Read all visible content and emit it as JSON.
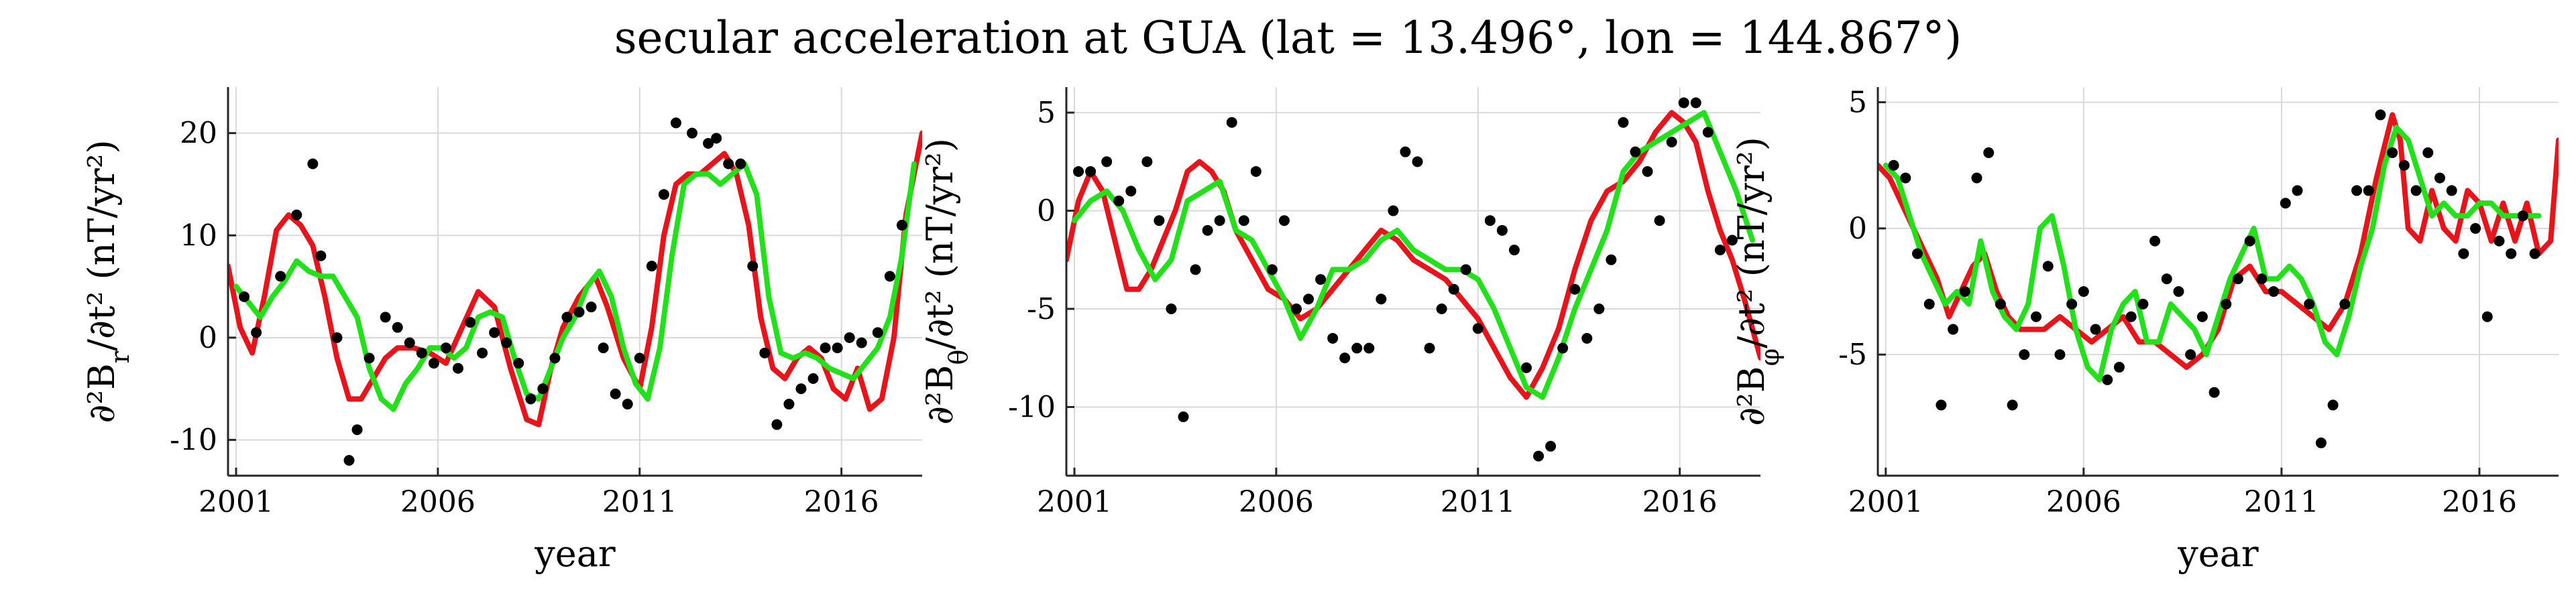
{
  "title": "secular acceleration at GUA (lat = 13.496°, lon = 144.867°)",
  "colors": {
    "model_a": "#e8141b",
    "model_b": "#22e01a",
    "observed": "#000000",
    "grid": "#d9d9d9"
  },
  "chart_data": [
    {
      "type": "line",
      "ylabel": "∂²B_r/∂t² (nT/yr²)",
      "xlabel": "year",
      "xlim": [
        2000.8,
        2018.0
      ],
      "ylim": [
        -13.5,
        24.5
      ],
      "xticks": [
        2001,
        2006,
        2011,
        2016
      ],
      "yticks": [
        -10,
        0,
        10,
        20
      ],
      "grid": true,
      "series": [
        {
          "kind": "line",
          "color": "#e8141b",
          "x": [
            2000.8,
            2001.1,
            2001.4,
            2001.7,
            2002.0,
            2002.3,
            2002.6,
            2002.9,
            2003.2,
            2003.5,
            2003.8,
            2004.1,
            2004.4,
            2004.7,
            2005.0,
            2005.4,
            2005.8,
            2006.2,
            2006.6,
            2007.0,
            2007.4,
            2007.8,
            2008.2,
            2008.5,
            2008.8,
            2009.1,
            2009.5,
            2009.9,
            2010.2,
            2010.6,
            2011.0,
            2011.3,
            2011.6,
            2011.9,
            2012.2,
            2012.5,
            2012.8,
            2013.1,
            2013.4,
            2013.7,
            2014.0,
            2014.3,
            2014.6,
            2014.9,
            2015.2,
            2015.5,
            2015.8,
            2016.1,
            2016.4,
            2016.7,
            2017.0,
            2017.3,
            2017.6,
            2018.0
          ],
          "y": [
            7,
            1,
            -1.5,
            4,
            10.5,
            12,
            11,
            9,
            4,
            -2,
            -6,
            -6,
            -4,
            -2,
            -1,
            -1,
            -1.5,
            -2.5,
            1,
            4.5,
            3,
            -3,
            -8,
            -8.5,
            -3,
            1,
            4,
            6,
            3,
            -2,
            -5,
            1,
            10,
            15,
            16,
            16,
            17,
            18,
            16,
            11,
            2,
            -3,
            -4,
            -2,
            -1,
            -2,
            -5,
            -6,
            -3,
            -7,
            -6,
            0,
            12,
            20
          ]
        },
        {
          "kind": "line",
          "color": "#22e01a",
          "x": [
            2001.0,
            2001.3,
            2001.6,
            2001.9,
            2002.2,
            2002.5,
            2002.8,
            2003.1,
            2003.4,
            2003.7,
            2004.0,
            2004.3,
            2004.6,
            2004.9,
            2005.2,
            2005.5,
            2005.8,
            2006.1,
            2006.4,
            2006.7,
            2007.0,
            2007.3,
            2007.6,
            2007.9,
            2008.2,
            2008.5,
            2008.8,
            2009.1,
            2009.4,
            2009.7,
            2010.0,
            2010.3,
            2010.6,
            2010.9,
            2011.2,
            2011.5,
            2011.8,
            2012.1,
            2012.4,
            2012.7,
            2013.0,
            2013.3,
            2013.6,
            2013.9,
            2014.2,
            2014.5,
            2014.8,
            2015.1,
            2015.4,
            2015.7,
            2016.0,
            2016.3,
            2016.6,
            2016.9,
            2017.2,
            2017.5,
            2017.8
          ],
          "y": [
            5,
            3.5,
            2,
            4,
            5.5,
            7.5,
            6.5,
            6,
            6,
            4,
            2,
            -3,
            -6,
            -7,
            -4.5,
            -3,
            -1,
            -1,
            -2,
            -1,
            2,
            2.5,
            2,
            -2,
            -5.5,
            -6,
            -3,
            0,
            2,
            5,
            6.5,
            4,
            -1,
            -4.5,
            -6,
            -1,
            8,
            15,
            16,
            16,
            15,
            16,
            17,
            14,
            4,
            -1.5,
            -2,
            -1.5,
            -2,
            -3,
            -3.5,
            -4,
            -2.5,
            -1,
            2,
            8,
            17
          ]
        },
        {
          "kind": "scatter",
          "color": "#000000",
          "x": [
            2001.2,
            2001.5,
            2002.1,
            2002.5,
            2002.9,
            2003.1,
            2003.5,
            2003.8,
            2004.0,
            2004.3,
            2004.7,
            2005.0,
            2005.3,
            2005.6,
            2005.9,
            2006.2,
            2006.5,
            2006.8,
            2007.1,
            2007.4,
            2007.7,
            2008.0,
            2008.3,
            2008.6,
            2008.9,
            2009.2,
            2009.5,
            2009.8,
            2010.1,
            2010.4,
            2010.7,
            2011.0,
            2011.3,
            2011.6,
            2011.9,
            2012.3,
            2012.7,
            2012.9,
            2013.2,
            2013.5,
            2013.8,
            2014.1,
            2014.4,
            2014.7,
            2015.0,
            2015.3,
            2015.6,
            2015.9,
            2016.2,
            2016.5,
            2016.9,
            2017.2,
            2017.5
          ],
          "y": [
            4,
            0.5,
            6,
            12,
            17,
            8,
            0,
            -12,
            -9,
            -2,
            2,
            1,
            -0.5,
            -1.5,
            -2.5,
            -1,
            -3,
            1.5,
            -1.5,
            0.5,
            -0.5,
            -2.5,
            -6,
            -5,
            -2,
            2,
            2.5,
            3,
            -1,
            -5.5,
            -6.5,
            -2,
            7,
            14,
            21,
            20,
            19,
            19.5,
            17,
            17,
            7,
            -1.5,
            -8.5,
            -6.5,
            -5,
            -4,
            -1,
            -1,
            0,
            -0.5,
            0.5,
            6,
            11
          ]
        }
      ]
    },
    {
      "type": "line",
      "ylabel": "∂²B_θ/∂t² (nT/yr²)",
      "xlabel": "",
      "xlim": [
        2000.8,
        2018.0
      ],
      "ylim": [
        -13.5,
        6.3
      ],
      "xticks": [
        2001,
        2006,
        2011,
        2016
      ],
      "yticks": [
        -10,
        -5,
        0,
        5
      ],
      "grid": true,
      "series": [
        {
          "kind": "line",
          "color": "#e8141b",
          "x": [
            2000.8,
            2001.1,
            2001.4,
            2001.7,
            2002.0,
            2002.3,
            2002.6,
            2002.9,
            2003.2,
            2003.5,
            2003.8,
            2004.1,
            2004.4,
            2004.7,
            2005.0,
            2005.4,
            2005.8,
            2006.2,
            2006.6,
            2007.0,
            2007.4,
            2007.8,
            2008.2,
            2008.6,
            2009.0,
            2009.4,
            2009.8,
            2010.2,
            2010.6,
            2011.0,
            2011.4,
            2011.8,
            2012.2,
            2012.6,
            2013.0,
            2013.4,
            2013.8,
            2014.2,
            2014.6,
            2015.0,
            2015.4,
            2015.8,
            2016.1,
            2016.4,
            2016.7,
            2017.0,
            2017.3,
            2017.6,
            2018.0
          ],
          "y": [
            -2.5,
            0.5,
            2,
            1,
            -1.5,
            -4,
            -4,
            -3,
            -1.5,
            0,
            2,
            2.5,
            2,
            1,
            -1,
            -2.5,
            -4,
            -4.5,
            -5.5,
            -5,
            -4,
            -3,
            -2,
            -1,
            -1.5,
            -2.5,
            -3,
            -3.5,
            -4.5,
            -5.5,
            -7,
            -8.5,
            -9.5,
            -8,
            -6,
            -3,
            -0.5,
            1,
            1.5,
            2.5,
            4,
            5,
            4.5,
            3.5,
            1,
            -1,
            -2.5,
            -4.5,
            -7.5
          ]
        },
        {
          "kind": "line",
          "color": "#22e01a",
          "x": [
            2001.0,
            2001.4,
            2001.8,
            2002.2,
            2002.6,
            2003.0,
            2003.4,
            2003.8,
            2004.2,
            2004.6,
            2005.0,
            2005.4,
            2005.8,
            2006.2,
            2006.6,
            2007.0,
            2007.4,
            2007.8,
            2008.2,
            2008.6,
            2009.0,
            2009.4,
            2009.8,
            2010.2,
            2010.6,
            2011.0,
            2011.4,
            2011.8,
            2012.2,
            2012.6,
            2013.0,
            2013.4,
            2013.8,
            2014.2,
            2014.6,
            2015.0,
            2015.4,
            2015.8,
            2016.2,
            2016.6,
            2017.0,
            2017.4,
            2017.8
          ],
          "y": [
            -0.5,
            0.5,
            1,
            0,
            -2,
            -3.5,
            -2.5,
            0.5,
            1,
            1.5,
            -1,
            -1.5,
            -3,
            -4.5,
            -6.5,
            -5,
            -3,
            -3,
            -2.5,
            -1.5,
            -1,
            -2,
            -2.5,
            -3,
            -3,
            -3.5,
            -5,
            -7,
            -9,
            -9.5,
            -7.5,
            -5,
            -3,
            -1,
            2,
            3,
            3.5,
            4,
            4.5,
            5,
            3,
            1,
            -1.5
          ]
        },
        {
          "kind": "scatter",
          "color": "#000000",
          "x": [
            2001.1,
            2001.4,
            2001.8,
            2002.1,
            2002.4,
            2002.8,
            2003.1,
            2003.4,
            2003.7,
            2004.0,
            2004.3,
            2004.6,
            2004.9,
            2005.2,
            2005.5,
            2005.9,
            2006.2,
            2006.5,
            2006.8,
            2007.1,
            2007.4,
            2007.7,
            2008.0,
            2008.3,
            2008.6,
            2008.9,
            2009.2,
            2009.5,
            2009.8,
            2010.1,
            2010.4,
            2010.7,
            2011.0,
            2011.3,
            2011.6,
            2011.9,
            2012.2,
            2012.5,
            2012.8,
            2013.1,
            2013.4,
            2013.7,
            2014.0,
            2014.3,
            2014.6,
            2014.9,
            2015.2,
            2015.5,
            2015.8,
            2016.1,
            2016.4,
            2016.7,
            2017.0,
            2017.3
          ],
          "y": [
            2,
            2,
            2.5,
            0.5,
            1,
            2.5,
            -0.5,
            -5,
            -10.5,
            -3,
            -1,
            -0.5,
            4.5,
            -0.5,
            2,
            -3,
            -0.5,
            -5,
            -4.5,
            -3.5,
            -6.5,
            -7.5,
            -7,
            -7,
            -4.5,
            0,
            3,
            2.5,
            -7,
            -5,
            -4,
            -3,
            -6,
            -0.5,
            -1,
            -2,
            -8,
            -12.5,
            -12,
            -7,
            -4,
            -6.5,
            -5,
            -2.5,
            4.5,
            3,
            2,
            -0.5,
            3.5,
            5.5,
            5.5,
            4,
            -2,
            -1.5
          ]
        }
      ]
    },
    {
      "type": "line",
      "ylabel": "∂²B_φ/∂t² (nT/yr²)",
      "xlabel": "year",
      "xlim": [
        2000.8,
        2018.0
      ],
      "ylim": [
        -9.8,
        5.6
      ],
      "xticks": [
        2001,
        2006,
        2011,
        2016
      ],
      "yticks": [
        -5,
        0,
        5
      ],
      "grid": true,
      "series": [
        {
          "kind": "line",
          "color": "#e8141b",
          "x": [
            2000.8,
            2001.1,
            2001.4,
            2001.7,
            2002.0,
            2002.3,
            2002.6,
            2002.9,
            2003.2,
            2003.5,
            2003.8,
            2004.1,
            2004.4,
            2004.7,
            2005.0,
            2005.4,
            2005.8,
            2006.2,
            2006.6,
            2007.0,
            2007.4,
            2007.8,
            2008.2,
            2008.6,
            2009.0,
            2009.4,
            2009.8,
            2010.2,
            2010.6,
            2011.0,
            2011.4,
            2011.8,
            2012.2,
            2012.6,
            2013.0,
            2013.4,
            2013.8,
            2014.0,
            2014.2,
            2014.5,
            2014.8,
            2015.1,
            2015.4,
            2015.7,
            2016.0,
            2016.3,
            2016.6,
            2016.9,
            2017.2,
            2017.5,
            2017.8,
            2018.0
          ],
          "y": [
            2.5,
            2,
            1,
            0,
            -1,
            -2,
            -3.5,
            -2.5,
            -1.5,
            -1,
            -2.5,
            -3.5,
            -4,
            -4,
            -4,
            -3.5,
            -4,
            -4.5,
            -4,
            -3.5,
            -4.5,
            -4.5,
            -5,
            -5.5,
            -5,
            -4,
            -2,
            -1.5,
            -2.5,
            -2.5,
            -3,
            -3.5,
            -4,
            -3,
            -1,
            2,
            4.5,
            3.5,
            0,
            -0.5,
            1.5,
            0,
            -0.5,
            1.5,
            1,
            -0.5,
            1,
            -0.5,
            1,
            -1,
            -0.5,
            3.5
          ]
        },
        {
          "kind": "line",
          "color": "#22e01a",
          "x": [
            2001.0,
            2001.3,
            2001.6,
            2001.9,
            2002.2,
            2002.5,
            2002.8,
            2003.1,
            2003.4,
            2003.7,
            2004.0,
            2004.3,
            2004.6,
            2004.9,
            2005.2,
            2005.5,
            2005.8,
            2006.1,
            2006.4,
            2006.7,
            2007.0,
            2007.3,
            2007.6,
            2007.9,
            2008.2,
            2008.5,
            2008.8,
            2009.1,
            2009.4,
            2009.7,
            2010.0,
            2010.3,
            2010.6,
            2010.9,
            2011.2,
            2011.5,
            2011.8,
            2012.1,
            2012.4,
            2012.7,
            2013.0,
            2013.3,
            2013.6,
            2013.9,
            2014.2,
            2014.5,
            2014.8,
            2015.1,
            2015.4,
            2015.7,
            2016.0,
            2016.3,
            2016.6,
            2016.9,
            2017.2,
            2017.5
          ],
          "y": [
            2.5,
            2,
            0.5,
            -1,
            -2,
            -3,
            -2.5,
            -3,
            -0.5,
            -2.5,
            -3.5,
            -4,
            -3,
            0,
            0.5,
            -1.5,
            -4,
            -5.5,
            -6,
            -4,
            -3,
            -2.5,
            -4.5,
            -4.5,
            -3,
            -3.5,
            -4,
            -5,
            -3.5,
            -2,
            -1,
            0,
            -2,
            -2,
            -1.5,
            -2,
            -3,
            -4.5,
            -5,
            -3.5,
            -1.5,
            0,
            2.5,
            4,
            3.5,
            2,
            0.5,
            1,
            0.5,
            0.5,
            1,
            1,
            0.5,
            0.5,
            0.5,
            0.5
          ]
        },
        {
          "kind": "scatter",
          "color": "#000000",
          "x": [
            2001.2,
            2001.5,
            2001.8,
            2002.1,
            2002.4,
            2002.7,
            2003.0,
            2003.3,
            2003.6,
            2003.9,
            2004.2,
            2004.5,
            2004.8,
            2005.1,
            2005.4,
            2005.7,
            2006.0,
            2006.3,
            2006.6,
            2006.9,
            2007.2,
            2007.5,
            2007.8,
            2008.1,
            2008.4,
            2008.7,
            2009.0,
            2009.3,
            2009.6,
            2009.9,
            2010.2,
            2010.5,
            2010.8,
            2011.1,
            2011.4,
            2011.7,
            2012.0,
            2012.3,
            2012.6,
            2012.9,
            2013.2,
            2013.5,
            2013.8,
            2014.1,
            2014.4,
            2014.7,
            2015.0,
            2015.3,
            2015.6,
            2015.9,
            2016.2,
            2016.5,
            2016.8,
            2017.1,
            2017.4
          ],
          "y": [
            2.5,
            2,
            -1,
            -3,
            -7,
            -4,
            -2.5,
            2,
            3,
            -3,
            -7,
            -5,
            -3.5,
            -1.5,
            -5,
            -3,
            -2.5,
            -4,
            -6,
            -5.5,
            -3.5,
            -3,
            -0.5,
            -2,
            -2.5,
            -5,
            -3.5,
            -6.5,
            -3,
            -2,
            -0.5,
            -2,
            -2.5,
            1,
            1.5,
            -3,
            -8.5,
            -7,
            -3,
            1.5,
            1.5,
            4.5,
            3,
            2.5,
            1.5,
            3,
            2,
            1.5,
            -1,
            0,
            -3.5,
            -0.5,
            -1,
            0.5,
            -1
          ]
        }
      ]
    }
  ]
}
